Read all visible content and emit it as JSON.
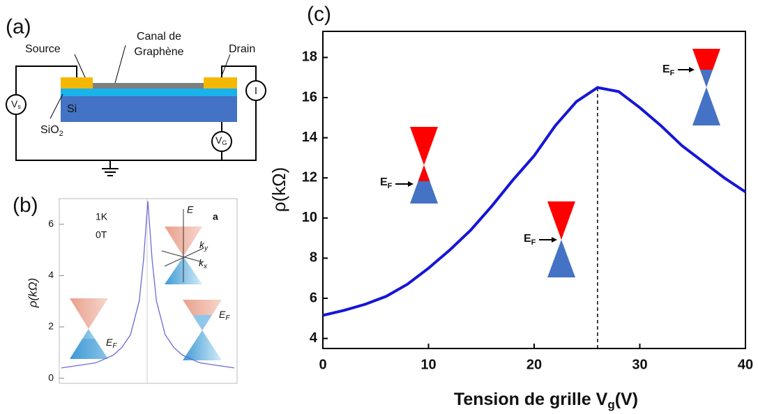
{
  "panel_a": {
    "label": "(a)",
    "source": "Source",
    "channel": [
      "Canal de",
      "Graphène"
    ],
    "drain": "Drain",
    "si": "Si",
    "sio2": {
      "main": "SiO",
      "sub": "2"
    },
    "vs": {
      "main": "V",
      "sub": "s"
    },
    "current": "I",
    "vg": {
      "main": "V",
      "sub": "G"
    }
  },
  "chart_data": [
    {
      "type": "line",
      "panel_label": "(b)",
      "ylabel": "ρ(kΩ)",
      "x": [
        -1,
        -0.8,
        -0.6,
        -0.4,
        -0.3,
        -0.2,
        -0.1,
        -0.05,
        0,
        0.05,
        0.1,
        0.2,
        0.3,
        0.4,
        0.6,
        0.8,
        1
      ],
      "values": [
        0.4,
        0.5,
        0.6,
        0.9,
        1.2,
        1.7,
        3.0,
        4.6,
        6.9,
        4.6,
        3.0,
        1.7,
        1.2,
        0.9,
        0.6,
        0.5,
        0.4
      ],
      "color": "#6a6ad6",
      "xlim": [
        -1,
        1
      ],
      "ylim": [
        -0.2,
        7
      ],
      "yticks": [
        0,
        2,
        4,
        6
      ],
      "annotations": {
        "temperature": "1K",
        "field": "0T",
        "tag": "a",
        "energy": "E",
        "ky": {
          "main": "k",
          "sub": "y"
        },
        "kx": {
          "main": "k",
          "sub": "x"
        },
        "ef_left": {
          "main": "E",
          "sub": "F"
        },
        "ef_right": {
          "main": "E",
          "sub": "F"
        }
      }
    },
    {
      "type": "line",
      "panel_label": "(c)",
      "xlabel": {
        "main": "Tension de grille V",
        "sub": "g",
        "tail": "(V)"
      },
      "ylabel": "ρ(kΩ)",
      "x": [
        0,
        2,
        4,
        6,
        8,
        10,
        12,
        14,
        16,
        18,
        20,
        22,
        24,
        26,
        28,
        30,
        32,
        34,
        36,
        38,
        40
      ],
      "values": [
        5.15,
        5.4,
        5.7,
        6.1,
        6.7,
        7.5,
        8.4,
        9.4,
        10.6,
        11.9,
        13.1,
        14.6,
        15.8,
        16.5,
        16.3,
        15.5,
        14.6,
        13.6,
        12.8,
        12.0,
        11.3
      ],
      "color": "#1515d8",
      "xlim": [
        0,
        40
      ],
      "ylim": [
        3.5,
        19.3
      ],
      "xticks": [
        0,
        10,
        20,
        30,
        40
      ],
      "yticks": [
        4,
        6,
        8,
        10,
        12,
        14,
        16,
        18
      ],
      "vline": 26,
      "annotations": [
        {
          "main": "E",
          "sub": "F"
        },
        {
          "main": "E",
          "sub": "F"
        },
        {
          "main": "E",
          "sub": "F"
        }
      ]
    }
  ]
}
